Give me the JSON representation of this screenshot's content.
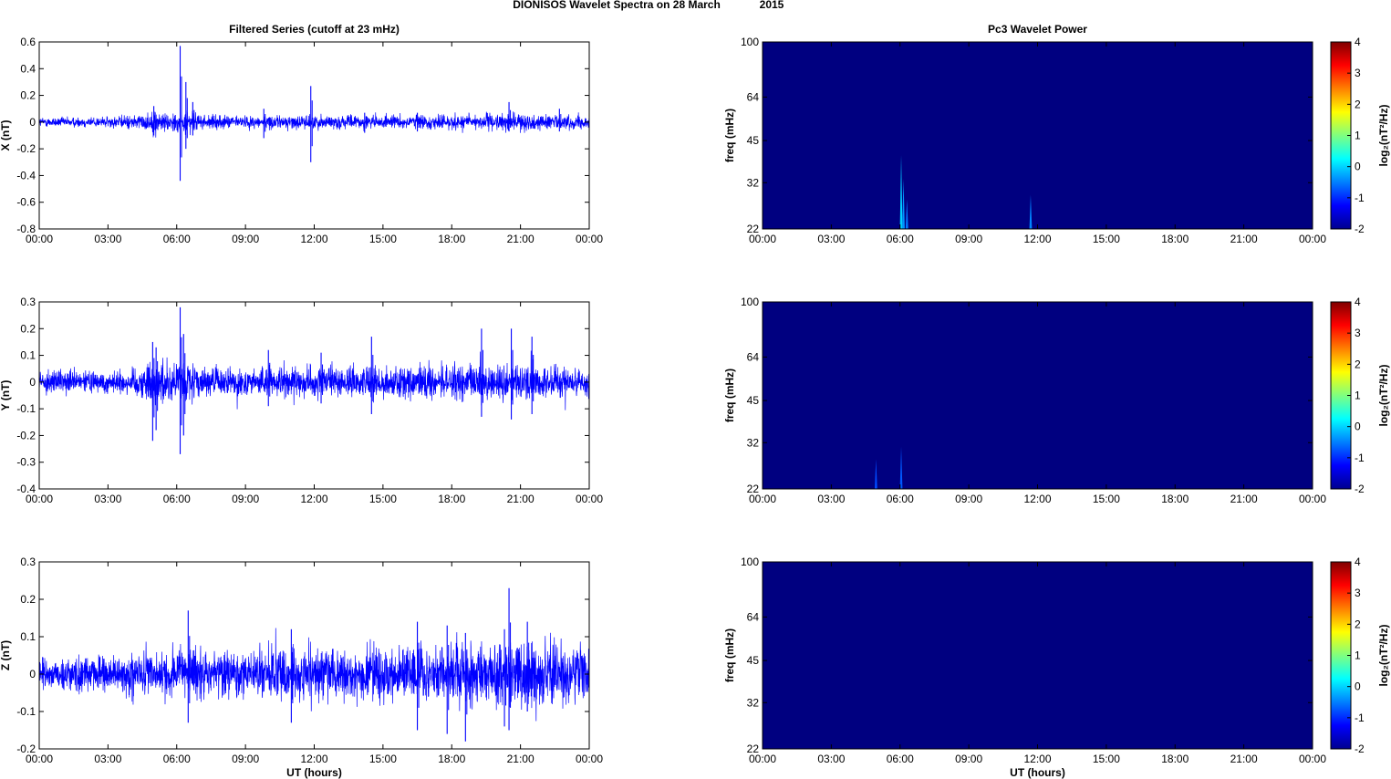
{
  "figure": {
    "suptitle_main": "DIONISOS Wavelet Spectra on 28 March",
    "suptitle_year": "2015"
  },
  "chart_data": [
    {
      "type": "line",
      "panel": "filtered-x",
      "title": "Filtered Series (cutoff at 23 mHz)",
      "ylabel": "X (nT)",
      "xlabel": "",
      "xlim": [
        0,
        24
      ],
      "ylim": [
        -0.8,
        0.6
      ],
      "xticks": [
        "00:00",
        "03:00",
        "06:00",
        "09:00",
        "12:00",
        "15:00",
        "18:00",
        "21:00",
        "00:00"
      ],
      "yticks": [
        "-0.8",
        "-0.6",
        "-0.4",
        "-0.2",
        "0",
        "0.2",
        "0.4",
        "0.6"
      ],
      "ytick_values": [
        -0.8,
        -0.6,
        -0.4,
        -0.2,
        0,
        0.2,
        0.4,
        0.6
      ],
      "color": "#0000ff",
      "baseline_amplitude": [
        [
          0,
          0.03
        ],
        [
          3,
          0.035
        ],
        [
          4.5,
          0.05
        ],
        [
          5,
          0.07
        ],
        [
          6,
          0.06
        ],
        [
          6.5,
          0.08
        ],
        [
          7,
          0.045
        ],
        [
          9,
          0.04
        ],
        [
          12,
          0.045
        ],
        [
          15,
          0.04
        ],
        [
          18,
          0.05
        ],
        [
          21,
          0.055
        ],
        [
          24,
          0.04
        ]
      ],
      "spikes": [
        [
          5.0,
          0.12,
          -0.1
        ],
        [
          6.15,
          0.57,
          -0.44
        ],
        [
          6.4,
          0.3,
          -0.2
        ],
        [
          6.7,
          0.15,
          -0.1
        ],
        [
          9.8,
          0.1,
          -0.12
        ],
        [
          11.85,
          0.27,
          -0.3
        ],
        [
          14.2,
          0.07,
          -0.08
        ],
        [
          16.5,
          0.07,
          -0.07
        ],
        [
          20.5,
          0.15,
          -0.07
        ],
        [
          22.7,
          0.1,
          -0.07
        ]
      ]
    },
    {
      "type": "line",
      "panel": "filtered-y",
      "title": "",
      "ylabel": "Y (nT)",
      "xlabel": "",
      "xlim": [
        0,
        24
      ],
      "ylim": [
        -0.4,
        0.3
      ],
      "xticks": [
        "00:00",
        "03:00",
        "06:00",
        "09:00",
        "12:00",
        "15:00",
        "18:00",
        "21:00",
        "00:00"
      ],
      "yticks": [
        "-0.4",
        "-0.3",
        "-0.2",
        "-0.1",
        "0",
        "0.1",
        "0.2",
        "0.3"
      ],
      "ytick_values": [
        -0.4,
        -0.3,
        -0.2,
        -0.1,
        0,
        0.1,
        0.2,
        0.3
      ],
      "color": "#0000ff",
      "baseline_amplitude": [
        [
          0,
          0.035
        ],
        [
          3,
          0.035
        ],
        [
          4.5,
          0.05
        ],
        [
          5,
          0.08
        ],
        [
          6,
          0.06
        ],
        [
          6.5,
          0.07
        ],
        [
          7,
          0.045
        ],
        [
          10,
          0.045
        ],
        [
          14,
          0.05
        ],
        [
          18,
          0.055
        ],
        [
          21,
          0.06
        ],
        [
          24,
          0.045
        ]
      ],
      "spikes": [
        [
          4.95,
          0.15,
          -0.22
        ],
        [
          5.1,
          0.13,
          -0.18
        ],
        [
          6.15,
          0.28,
          -0.27
        ],
        [
          6.3,
          0.18,
          -0.2
        ],
        [
          10,
          0.12,
          -0.09
        ],
        [
          12.3,
          0.11,
          -0.08
        ],
        [
          14.5,
          0.17,
          -0.12
        ],
        [
          19.3,
          0.2,
          -0.13
        ],
        [
          20.6,
          0.2,
          -0.14
        ],
        [
          21.5,
          0.17,
          -0.12
        ]
      ]
    },
    {
      "type": "line",
      "panel": "filtered-z",
      "title": "",
      "ylabel": "Z (nT)",
      "xlabel": "UT (hours)",
      "xlim": [
        0,
        24
      ],
      "ylim": [
        -0.2,
        0.3
      ],
      "xticks": [
        "00:00",
        "03:00",
        "06:00",
        "09:00",
        "12:00",
        "15:00",
        "18:00",
        "21:00",
        "00:00"
      ],
      "yticks": [
        "-0.2",
        "-0.1",
        "0",
        "0.1",
        "0.2",
        "0.3"
      ],
      "ytick_values": [
        -0.2,
        -0.1,
        0,
        0.1,
        0.2,
        0.3
      ],
      "color": "#0000ff",
      "baseline_amplitude": [
        [
          0,
          0.04
        ],
        [
          3,
          0.04
        ],
        [
          5,
          0.055
        ],
        [
          8,
          0.055
        ],
        [
          12,
          0.06
        ],
        [
          15,
          0.065
        ],
        [
          18,
          0.07
        ],
        [
          20,
          0.075
        ],
        [
          21,
          0.08
        ],
        [
          24,
          0.06
        ]
      ],
      "spikes": [
        [
          6.5,
          0.17,
          -0.13
        ],
        [
          11.0,
          0.12,
          -0.13
        ],
        [
          16.5,
          0.14,
          -0.15
        ],
        [
          17.8,
          0.13,
          -0.16
        ],
        [
          18.6,
          0.11,
          -0.18
        ],
        [
          20.3,
          0.12,
          -0.14
        ],
        [
          20.5,
          0.23,
          -0.15
        ],
        [
          21.3,
          0.14,
          -0.1
        ]
      ]
    },
    {
      "type": "heatmap",
      "panel": "wavelet-x",
      "title": "Pc3 Wavelet Power",
      "ylabel": "freq (mHz)",
      "xlabel": "",
      "xlim": [
        0,
        24
      ],
      "ylim": [
        22,
        100
      ],
      "yscale": "log",
      "xticks": [
        "00:00",
        "03:00",
        "06:00",
        "09:00",
        "12:00",
        "15:00",
        "18:00",
        "21:00",
        "00:00"
      ],
      "yticks": [
        "22",
        "32",
        "45",
        "64",
        "100"
      ],
      "ytick_values": [
        22,
        32,
        45,
        64,
        100
      ],
      "clim": [
        -2,
        4
      ],
      "cbar_ticks": [
        "-2",
        "-1",
        "0",
        "1",
        "2",
        "3",
        "4"
      ],
      "cbar_label": "log₂(nT²/Hz)",
      "background_value": -2,
      "bursts": [
        [
          6.05,
          40,
          -0.6
        ],
        [
          6.15,
          33,
          -1.0
        ],
        [
          6.3,
          28,
          -1.2
        ],
        [
          11.7,
          29,
          -1.1
        ]
      ]
    },
    {
      "type": "heatmap",
      "panel": "wavelet-y",
      "title": "",
      "ylabel": "freq (mHz)",
      "xlabel": "",
      "xlim": [
        0,
        24
      ],
      "ylim": [
        22,
        100
      ],
      "yscale": "log",
      "xticks": [
        "00:00",
        "03:00",
        "06:00",
        "09:00",
        "12:00",
        "15:00",
        "18:00",
        "21:00",
        "00:00"
      ],
      "yticks": [
        "22",
        "32",
        "45",
        "64",
        "100"
      ],
      "ytick_values": [
        22,
        32,
        45,
        64,
        100
      ],
      "clim": [
        -2,
        4
      ],
      "cbar_ticks": [
        "-2",
        "-1",
        "0",
        "1",
        "2",
        "3",
        "4"
      ],
      "cbar_label": "log₂(nT²/Hz)",
      "background_value": -2,
      "bursts": [
        [
          4.95,
          28,
          -1.5
        ],
        [
          6.05,
          31,
          -1.4
        ]
      ]
    },
    {
      "type": "heatmap",
      "panel": "wavelet-z",
      "title": "",
      "ylabel": "freq (mHz)",
      "xlabel": "UT (hours)",
      "xlim": [
        0,
        24
      ],
      "ylim": [
        22,
        100
      ],
      "yscale": "log",
      "xticks": [
        "00:00",
        "03:00",
        "06:00",
        "09:00",
        "12:00",
        "15:00",
        "18:00",
        "21:00",
        "00:00"
      ],
      "yticks": [
        "22",
        "32",
        "45",
        "64",
        "100"
      ],
      "ytick_values": [
        22,
        32,
        45,
        64,
        100
      ],
      "clim": [
        -2,
        4
      ],
      "cbar_ticks": [
        "-2",
        "-1",
        "0",
        "1",
        "2",
        "3",
        "4"
      ],
      "cbar_label": "log₂(nT²/Hz)",
      "background_value": -2,
      "bursts": []
    }
  ]
}
